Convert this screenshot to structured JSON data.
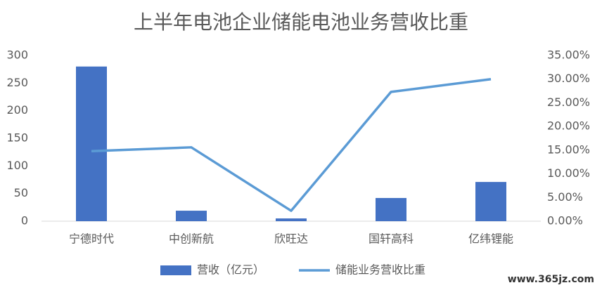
{
  "chart_data": {
    "type": "bar-line",
    "title": "上半年电池企业储能电池业务营收比重",
    "categories": [
      "宁德时代",
      "中创新航",
      "欣旺达",
      "国轩高科",
      "亿纬锂能"
    ],
    "series": [
      {
        "name": "营收（亿元）",
        "type": "bar",
        "color": "#4472c4",
        "values": [
          280,
          19,
          5,
          42,
          71
        ]
      },
      {
        "name": "储能业务营收比重",
        "type": "line",
        "axis": "y2",
        "color": "#5b9bd5",
        "values": [
          14.8,
          15.6,
          2.2,
          27.3,
          30.0
        ]
      }
    ],
    "ylim": [
      0,
      300
    ],
    "yticks": [
      0,
      50,
      100,
      150,
      200,
      250,
      300
    ],
    "y2lim": [
      0,
      35
    ],
    "y2ticks": [
      {
        "value": 0,
        "label": "0.00%"
      },
      {
        "value": 5,
        "label": "5.00%"
      },
      {
        "value": 10,
        "label": "10.00%"
      },
      {
        "value": 15,
        "label": "15.00%"
      },
      {
        "value": 20,
        "label": "20.00%"
      },
      {
        "value": 25,
        "label": "25.00%"
      },
      {
        "value": 30,
        "label": "30.00%"
      },
      {
        "value": 35,
        "label": "35.00%"
      }
    ],
    "grid": false,
    "legend": "bottom",
    "watermark": "www.365jz.com"
  }
}
